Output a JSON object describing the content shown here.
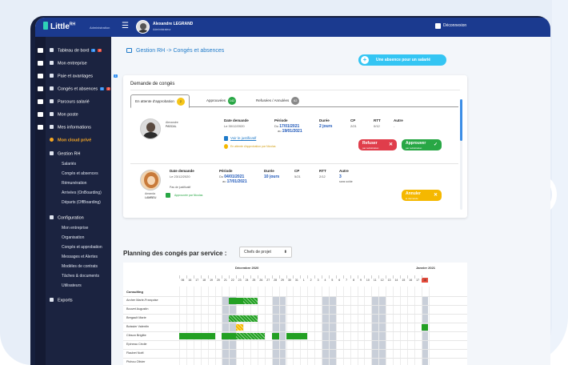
{
  "app": {
    "brand": "Little",
    "brand_sup": "RH",
    "brand_sub": "Administration",
    "user_name": "Alexandre LEGRAND",
    "user_role": "Administrateur",
    "logout": "Déconnexion"
  },
  "sidebar": {
    "items": [
      {
        "label": "Tableau de bord",
        "badges": [
          "1",
          "2"
        ]
      },
      {
        "label": "Mon entreprise"
      },
      {
        "label": "Paie et avantages",
        "badges": [
          "1"
        ]
      },
      {
        "label": "Congés et absences",
        "badges": [
          "1",
          "2"
        ]
      },
      {
        "label": "Parcours salarié"
      },
      {
        "label": "Mon poste"
      },
      {
        "label": "Mes informations"
      },
      {
        "label": "Mon cloud privé"
      },
      {
        "label": "Gestion RH"
      }
    ],
    "gestion_rh": [
      "Salariés",
      "Congés et absences",
      "Rémunération",
      "Arrivées (OnBoarding)",
      "Départs (OffBoarding)"
    ],
    "configuration": "Configuration",
    "config_items": [
      "Mon entreprise",
      "Organisation",
      "Congés et approbation",
      "Messages et Alertes",
      "Modèles de contrats",
      "Tâches & documents",
      "Utilisateurs"
    ],
    "exports": "Exports"
  },
  "main": {
    "breadcrumb": "Gestion RH  ->  Congés et absences",
    "add_button": "Une absence pour un salarié",
    "card_title": "Demande de congés",
    "tabs": [
      {
        "label": "En attente d'approbation",
        "count": "2"
      },
      {
        "label": "Approuvées",
        "count": "142"
      },
      {
        "label": "Refusées / Annulées",
        "count": "62"
      }
    ],
    "headers": {
      "date": "Date demande",
      "period": "Période",
      "duration": "Durée",
      "cp": "CP",
      "rtt": "RTT",
      "other": "Autre"
    },
    "requests": [
      {
        "first_name": "Alexandre",
        "last_name": "PASCAL",
        "date": "Le 30/12/2020",
        "period_from": "17/01/2021",
        "period_to": "19/01/2021",
        "duration": "2 jours",
        "cp": "2/21",
        "rtt": "0/12",
        "other": "-",
        "doc_link": "Voir le justificatif",
        "status": "En attente d'approbation par Nicolas",
        "refuse": "Refuser",
        "refuse_sub": "par substitution",
        "approve": "Approuver",
        "approve_sub": "par substitution"
      },
      {
        "first_name": "Amanda",
        "last_name": "LAMBEU",
        "date": "Le 23/12/2020",
        "period_from": "04/01/2021",
        "period_to": "17/01/2021",
        "duration": "10 jours",
        "cp": "5/21",
        "rtt": "2/12",
        "other": "3",
        "other_sub": "sans solde",
        "doc_link": "Pas de justificatif",
        "status": "Approuvée par Nicolas",
        "cancel": "Annuler",
        "cancel_sub": "le demande"
      }
    ],
    "from_prefix": "Du",
    "to_prefix": "au"
  },
  "planning": {
    "title": "Planning des congés par service :",
    "select": "Chefs de projet",
    "months": [
      "Décembre 2020",
      "Janvier 2021"
    ],
    "days": [
      "06",
      "16",
      "17",
      "18",
      "19",
      "20",
      "21",
      "22",
      "23",
      "24",
      "25",
      "26",
      "27",
      "28",
      "29",
      "30",
      "31",
      "1",
      "2",
      "3",
      "4",
      "5",
      "6",
      "7",
      "8",
      "9",
      "10",
      "11",
      "12",
      "13",
      "14",
      "15",
      "16",
      "17",
      "18"
    ],
    "group": "Consulting",
    "employees": [
      "Archer Marie-Françoise",
      "Bouvet Augustin",
      "Bregault Marie",
      "Boissier Valentin",
      "Cibson Brigitte",
      "Epineau Cécile",
      "Flaubet Noël",
      "Pichou Olivier"
    ],
    "colors": {
      "primary": "#1b3a8f",
      "accent": "#34c5f3",
      "approved": "#23a023",
      "pending": "#f5b800"
    }
  }
}
